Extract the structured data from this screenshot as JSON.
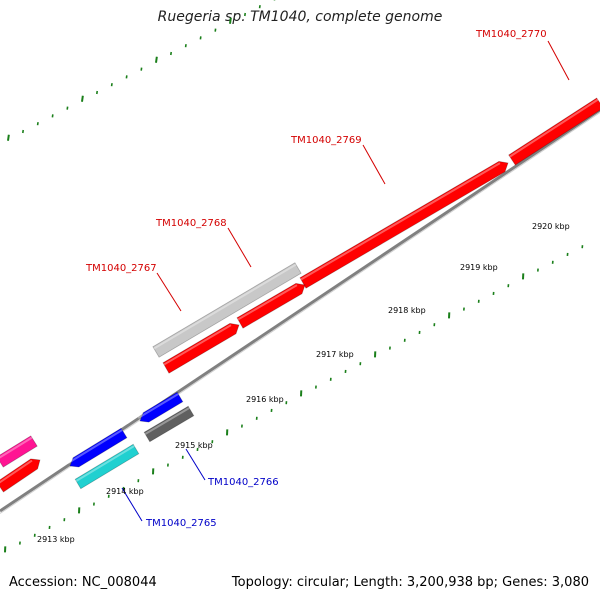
{
  "title": "Ruegeria sp. TM1040, complete genome",
  "footer": {
    "accession": "Accession: NC_008044",
    "summary": "Topology: circular; Length: 3,200,938 bp; Genes: 3,080"
  },
  "colors": {
    "backbone": "#808080",
    "tick": "#1a7f1a",
    "label_forward": "#d40000",
    "label_reverse": "#0000c8",
    "tick_label": "#000000"
  },
  "genes": [
    {
      "id": "gene-red-large-2770",
      "color": "#ff0000",
      "strand": "forward"
    },
    {
      "id": "gene-red-2769",
      "color": "#ff0000",
      "strand": "forward"
    },
    {
      "id": "gene-red-2768",
      "color": "#ff0000",
      "strand": "forward"
    },
    {
      "id": "gene-red-2767",
      "color": "#ff0000",
      "strand": "forward"
    },
    {
      "id": "gene-gray-light",
      "color": "#c8c8c8",
      "strand": "forward"
    },
    {
      "id": "gene-red-left",
      "color": "#ff0000",
      "strand": "forward"
    },
    {
      "id": "gene-pink-left",
      "color": "#ff1493",
      "strand": "forward"
    },
    {
      "id": "gene-blue-1",
      "color": "#0000ff",
      "strand": "reverse"
    },
    {
      "id": "gene-blue-2",
      "color": "#0000ff",
      "strand": "reverse"
    },
    {
      "id": "gene-gray-dark",
      "color": "#606060",
      "strand": "forward"
    },
    {
      "id": "gene-cyan",
      "color": "#20d0d0",
      "strand": "forward"
    }
  ],
  "gene_labels": [
    {
      "text": "TM1040_2770",
      "strand": "forward"
    },
    {
      "text": "TM1040_2769",
      "strand": "forward"
    },
    {
      "text": "TM1040_2768",
      "strand": "forward"
    },
    {
      "text": "TM1040_2767",
      "strand": "forward"
    },
    {
      "text": "TM1040_2766",
      "strand": "reverse"
    },
    {
      "text": "TM1040_2765",
      "strand": "reverse"
    }
  ],
  "kbp_labels": [
    "2913 kbp",
    "2914 kbp",
    "2915 kbp",
    "2916 kbp",
    "2917 kbp",
    "2918 kbp",
    "2919 kbp",
    "2920 kbp"
  ]
}
